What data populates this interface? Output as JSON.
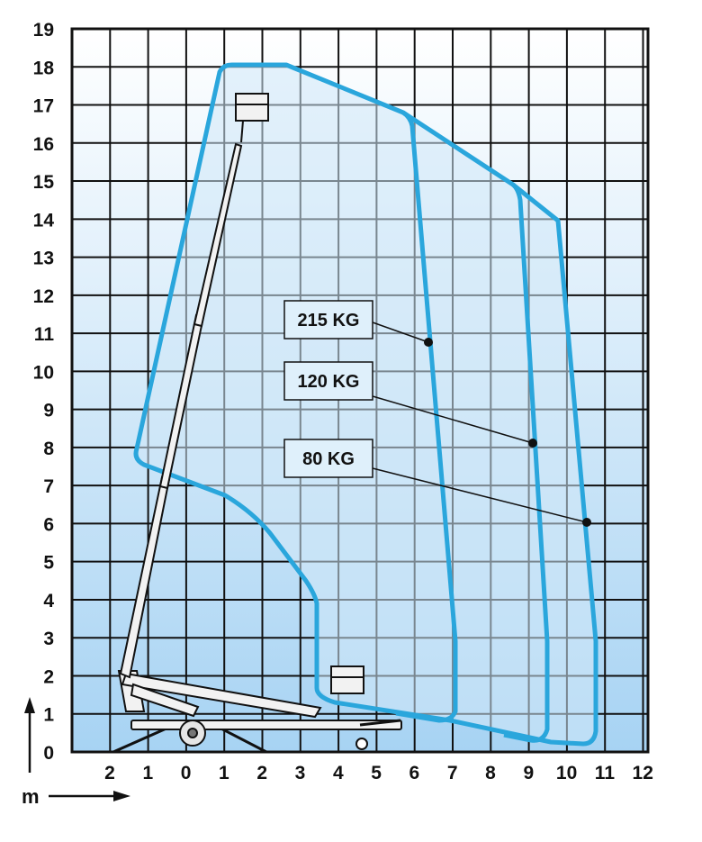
{
  "diagram": {
    "y_axis_ticks": [
      "0",
      "1",
      "2",
      "3",
      "4",
      "5",
      "6",
      "7",
      "8",
      "9",
      "10",
      "11",
      "12",
      "13",
      "14",
      "15",
      "16",
      "17",
      "18",
      "19"
    ],
    "x_axis_ticks": [
      "2",
      "1",
      "0",
      "1",
      "2",
      "3",
      "4",
      "5",
      "6",
      "7",
      "8",
      "9",
      "10",
      "11",
      "12"
    ],
    "axis_unit_label": "m",
    "load_labels": [
      {
        "id": "load-215",
        "text": "215 KG"
      },
      {
        "id": "load-120",
        "text": "120 KG"
      },
      {
        "id": "load-80",
        "text": "80 KG"
      }
    ],
    "colors": {
      "envelope": "#2aa6dc",
      "grid": "#111111",
      "fill_top": "#ffffff",
      "fill_bottom": "#a7d3f3",
      "label_box": "#dff0fb",
      "machine": "#f2f2f2"
    }
  }
}
